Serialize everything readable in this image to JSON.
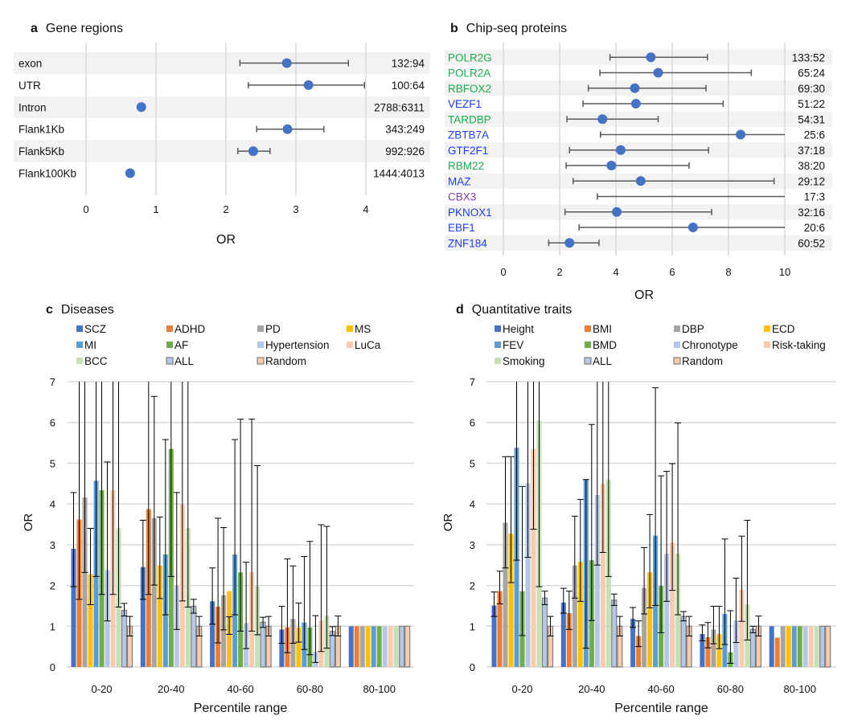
{
  "colors": {
    "point": "#4472C4",
    "whisker": "#595959",
    "band": "#f2f2f2",
    "grid": "#d9d9d9"
  },
  "chart_data": [
    {
      "panel": "a",
      "title": "Gene regions",
      "type": "forest",
      "xlabel": "OR",
      "xlim": [
        0,
        4
      ],
      "xticks": [
        0,
        1,
        2,
        3,
        4
      ],
      "rows": [
        {
          "label": "exon",
          "or": 2.87,
          "low": 2.2,
          "high": 3.75,
          "ratio": "132:94"
        },
        {
          "label": "UTR",
          "or": 3.18,
          "low": 2.32,
          "high": 3.98,
          "ratio": "100:64"
        },
        {
          "label": "Intron",
          "or": 0.79,
          "low": null,
          "high": null,
          "ratio": "2788:6311"
        },
        {
          "label": "Flank1Kb",
          "or": 2.88,
          "low": 2.44,
          "high": 3.4,
          "ratio": "343:249"
        },
        {
          "label": "Flank5Kb",
          "or": 2.39,
          "low": 2.17,
          "high": 2.63,
          "ratio": "992:926"
        },
        {
          "label": "Flank100Kb",
          "or": 0.63,
          "low": null,
          "high": null,
          "ratio": "1444:4013"
        }
      ]
    },
    {
      "panel": "b",
      "title": "Chip-seq proteins",
      "type": "forest",
      "xlabel": "OR",
      "xlim": [
        0,
        10
      ],
      "xticks": [
        0,
        2,
        4,
        6,
        8,
        10
      ],
      "label_colors": {
        "green": "#1aab4b",
        "blue": "#1f3cf5",
        "purple": "#7a3fa8"
      },
      "rows": [
        {
          "label": "POLR2G",
          "color": "green",
          "or": 5.24,
          "low": 3.79,
          "high": 7.25,
          "ratio": "133:52"
        },
        {
          "label": "POLR2A",
          "color": "green",
          "or": 5.5,
          "low": 3.43,
          "high": 8.81,
          "ratio": "65:24"
        },
        {
          "label": "RBFOX2",
          "color": "green",
          "or": 4.67,
          "low": 3.02,
          "high": 7.2,
          "ratio": "69:30"
        },
        {
          "label": "VEZF1",
          "color": "blue",
          "or": 4.71,
          "low": 2.83,
          "high": 7.81,
          "ratio": "51:22"
        },
        {
          "label": "TARDBP",
          "color": "green",
          "or": 3.52,
          "low": 2.26,
          "high": 5.5,
          "ratio": "54:31"
        },
        {
          "label": "ZBTB7A",
          "color": "blue",
          "or": 8.43,
          "low": 3.45,
          "high": 10,
          "ratio": "25:6"
        },
        {
          "label": "GTF2F1",
          "color": "blue",
          "or": 4.17,
          "low": 2.35,
          "high": 7.29,
          "ratio": "37:18"
        },
        {
          "label": "RBM22",
          "color": "green",
          "or": 3.84,
          "low": 2.23,
          "high": 6.6,
          "ratio": "38:20"
        },
        {
          "label": "MAZ",
          "color": "blue",
          "or": 4.88,
          "low": 2.48,
          "high": 9.62,
          "ratio": "29:12"
        },
        {
          "label": "CBX3",
          "color": "purple",
          "or": null,
          "low": 3.34,
          "high": 10,
          "ratio": "17:3"
        },
        {
          "label": "PKNOX1",
          "color": "blue",
          "or": 4.03,
          "low": 2.19,
          "high": 7.4,
          "ratio": "32:16"
        },
        {
          "label": "EBF1",
          "color": "blue",
          "or": 6.74,
          "low": 2.69,
          "high": 10,
          "ratio": "20:6"
        },
        {
          "label": "ZNF184",
          "color": "blue",
          "or": 2.35,
          "low": 1.61,
          "high": 3.4,
          "ratio": "60:52"
        }
      ]
    },
    {
      "panel": "c",
      "title": "Diseases",
      "type": "bar",
      "xlabel": "Percentile range",
      "ylabel": "OR",
      "ylim": [
        0,
        7
      ],
      "yticks": [
        0,
        1,
        2,
        3,
        4,
        5,
        6,
        7
      ],
      "categories": [
        "0-20",
        "20-40",
        "40-60",
        "60-80",
        "80-100"
      ],
      "series": [
        {
          "name": "SCZ",
          "color": "#4472C4",
          "values": [
            2.9,
            2.45,
            1.61,
            0.92,
            1
          ],
          "low": [
            1.97,
            1.66,
            1.05,
            0.58,
            null
          ],
          "high": [
            4.28,
            3.6,
            2.43,
            1.49,
            null
          ]
        },
        {
          "name": "ADHD",
          "color": "#ED7D31",
          "values": [
            3.62,
            3.87,
            1.48,
            0.97,
            1
          ],
          "low": [
            1.66,
            1.78,
            0.59,
            0.35,
            null
          ],
          "high": [
            8,
            8,
            3.65,
            2.65,
            null
          ]
        },
        {
          "name": "PD",
          "color": "#A5A5A5",
          "values": [
            4.16,
            3.65,
            1.76,
            1.18,
            1
          ],
          "low": [
            2.32,
            2.01,
            0.91,
            0.58,
            null
          ],
          "high": [
            8,
            6.64,
            3.42,
            2.48,
            null
          ]
        },
        {
          "name": "MS",
          "color": "#FFC000",
          "values": [
            2.28,
            2.49,
            1.86,
            0.97,
            1
          ],
          "low": [
            1.53,
            1.68,
            0.8,
            0.61,
            null
          ],
          "high": [
            3.4,
            3.68,
            1.23,
            1.57,
            null
          ]
        },
        {
          "name": "MI",
          "color": "#5B9BD5",
          "values": [
            4.57,
            2.76,
            2.76,
            1.09,
            1
          ],
          "low": [
            2.22,
            1.28,
            1.28,
            0.43,
            null
          ],
          "high": [
            8,
            5.58,
            5.58,
            2.71,
            null
          ]
        },
        {
          "name": "AF",
          "color": "#70AD47",
          "values": [
            4.34,
            5.35,
            2.32,
            0.97,
            1
          ],
          "low": [
            1.78,
            2.22,
            0.88,
            0.3,
            null
          ],
          "high": [
            8,
            8,
            6.08,
            3.08,
            null
          ]
        },
        {
          "name": "Hypertension",
          "color": "#B4C7E7",
          "values": [
            2.38,
            1.99,
            1.08,
            0.37,
            1
          ],
          "low": [
            1.13,
            0.92,
            0.45,
            0.11,
            null
          ],
          "high": [
            5.03,
            4.28,
            2.57,
            1.26,
            null
          ]
        },
        {
          "name": "LuCa",
          "color": "#F8CBAD",
          "values": [
            4.34,
            3.99,
            2.32,
            1.14,
            1
          ],
          "low": [
            1.78,
            1.62,
            0.88,
            0.38,
            null
          ],
          "high": [
            8,
            8,
            6.08,
            3.49,
            null
          ]
        },
        {
          "name": "BCC",
          "color": "#C5E0B4",
          "values": [
            3.41,
            3.41,
            1.97,
            1.26,
            1
          ],
          "low": [
            1.47,
            1.47,
            0.79,
            0.46,
            null
          ],
          "high": [
            8,
            8,
            4.94,
            3.45,
            null
          ]
        },
        {
          "name": "ALL",
          "color": "#B4C7E7",
          "outlined": true,
          "values": [
            1.39,
            1.49,
            1.1,
            0.87,
            1
          ],
          "low": [
            1.25,
            1.32,
            0.97,
            0.77,
            null
          ],
          "high": [
            1.56,
            1.66,
            1.22,
            0.99,
            null
          ]
        },
        {
          "name": "Random",
          "color": "#F8CBAD",
          "outlined": true,
          "values": [
            1,
            1,
            1,
            1,
            1
          ],
          "low": [
            0.76,
            0.76,
            0.76,
            0.76,
            null
          ],
          "high": [
            1.24,
            1.24,
            1.24,
            1.25,
            null
          ]
        }
      ]
    },
    {
      "panel": "d",
      "title": "Quantitative traits",
      "type": "bar",
      "xlabel": "Percentile range",
      "ylabel": "OR",
      "ylim": [
        0,
        7
      ],
      "yticks": [
        0,
        1,
        2,
        3,
        4,
        5,
        6,
        7
      ],
      "categories": [
        "0-20",
        "20-40",
        "40-60",
        "60-80",
        "80-100"
      ],
      "series": [
        {
          "name": "Height",
          "color": "#4472C4",
          "values": [
            1.51,
            1.58,
            1.18,
            0.81,
            1
          ],
          "low": [
            1.24,
            1.32,
            0.97,
            0.64,
            null
          ],
          "high": [
            1.84,
            1.93,
            1.46,
            1.03,
            null
          ]
        },
        {
          "name": "BMI",
          "color": "#ED7D31",
          "values": [
            1.86,
            1.32,
            0.76,
            0.73,
            0.72
          ],
          "low": [
            1.55,
            0.92,
            0.5,
            0.47,
            null
          ],
          "high": [
            2.35,
            1.86,
            1.13,
            1.09,
            null
          ]
        },
        {
          "name": "DBP",
          "color": "#A5A5A5",
          "values": [
            3.54,
            2.49,
            1.94,
            0.92,
            1
          ],
          "low": [
            2.43,
            1.69,
            1.3,
            0.57,
            null
          ],
          "high": [
            5.16,
            3.7,
            2.93,
            1.49,
            null
          ]
        },
        {
          "name": "ECD",
          "color": "#FFC000",
          "values": [
            3.27,
            2.58,
            2.32,
            0.81,
            1
          ],
          "low": [
            2.07,
            1.61,
            1.45,
            0.45,
            null
          ],
          "high": [
            5.16,
            4.11,
            3.74,
            1.49,
            null
          ]
        },
        {
          "name": "FEV",
          "color": "#5B9BD5",
          "values": [
            5.38,
            4.59,
            3.22,
            1.3,
            1
          ],
          "low": [
            2.62,
            0.46,
            1.51,
            0.55,
            null
          ],
          "high": [
            8,
            4.6,
            6.85,
            3.14,
            null
          ]
        },
        {
          "name": "BMD",
          "color": "#70AD47",
          "values": [
            1.86,
            2.62,
            1.99,
            0.36,
            1
          ],
          "low": [
            0.77,
            1.14,
            0.84,
            0.09,
            null
          ],
          "high": [
            4.43,
            5.95,
            4.69,
            1.38,
            null
          ]
        },
        {
          "name": "Chronotype",
          "color": "#B4C7E7",
          "values": [
            4.51,
            4.22,
            2.78,
            1.14,
            1
          ],
          "low": [
            2.69,
            2.5,
            1.61,
            0.6,
            null
          ],
          "high": [
            8,
            8,
            4.8,
            2.18,
            null
          ]
        },
        {
          "name": "Risk-taking",
          "color": "#F8CBAD",
          "values": [
            5.35,
            4.49,
            3.05,
            1.89,
            1
          ],
          "low": [
            3.38,
            2.81,
            1.88,
            1.12,
            null
          ],
          "high": [
            8,
            8,
            4.99,
            3.21,
            null
          ]
        },
        {
          "name": "Smoking",
          "color": "#C5E0B4",
          "values": [
            6.05,
            4.59,
            2.78,
            1.53,
            1
          ],
          "low": [
            1.97,
            2.22,
            1.28,
            0.66,
            null
          ],
          "high": [
            8,
            8,
            5.99,
            3.6,
            null
          ]
        },
        {
          "name": "ALL",
          "color": "#B4C7E7",
          "outlined": true,
          "values": [
            1.69,
            1.64,
            1.24,
            0.92,
            1
          ],
          "low": [
            1.53,
            1.51,
            1.13,
            0.84,
            null
          ],
          "high": [
            1.86,
            1.79,
            1.36,
            1.0,
            null
          ]
        },
        {
          "name": "Random",
          "color": "#F8CBAD",
          "outlined": true,
          "values": [
            1,
            1,
            1,
            1,
            1
          ],
          "low": [
            0.76,
            0.76,
            0.76,
            0.76,
            null
          ],
          "high": [
            1.24,
            1.24,
            1.24,
            1.25,
            null
          ]
        }
      ]
    }
  ]
}
